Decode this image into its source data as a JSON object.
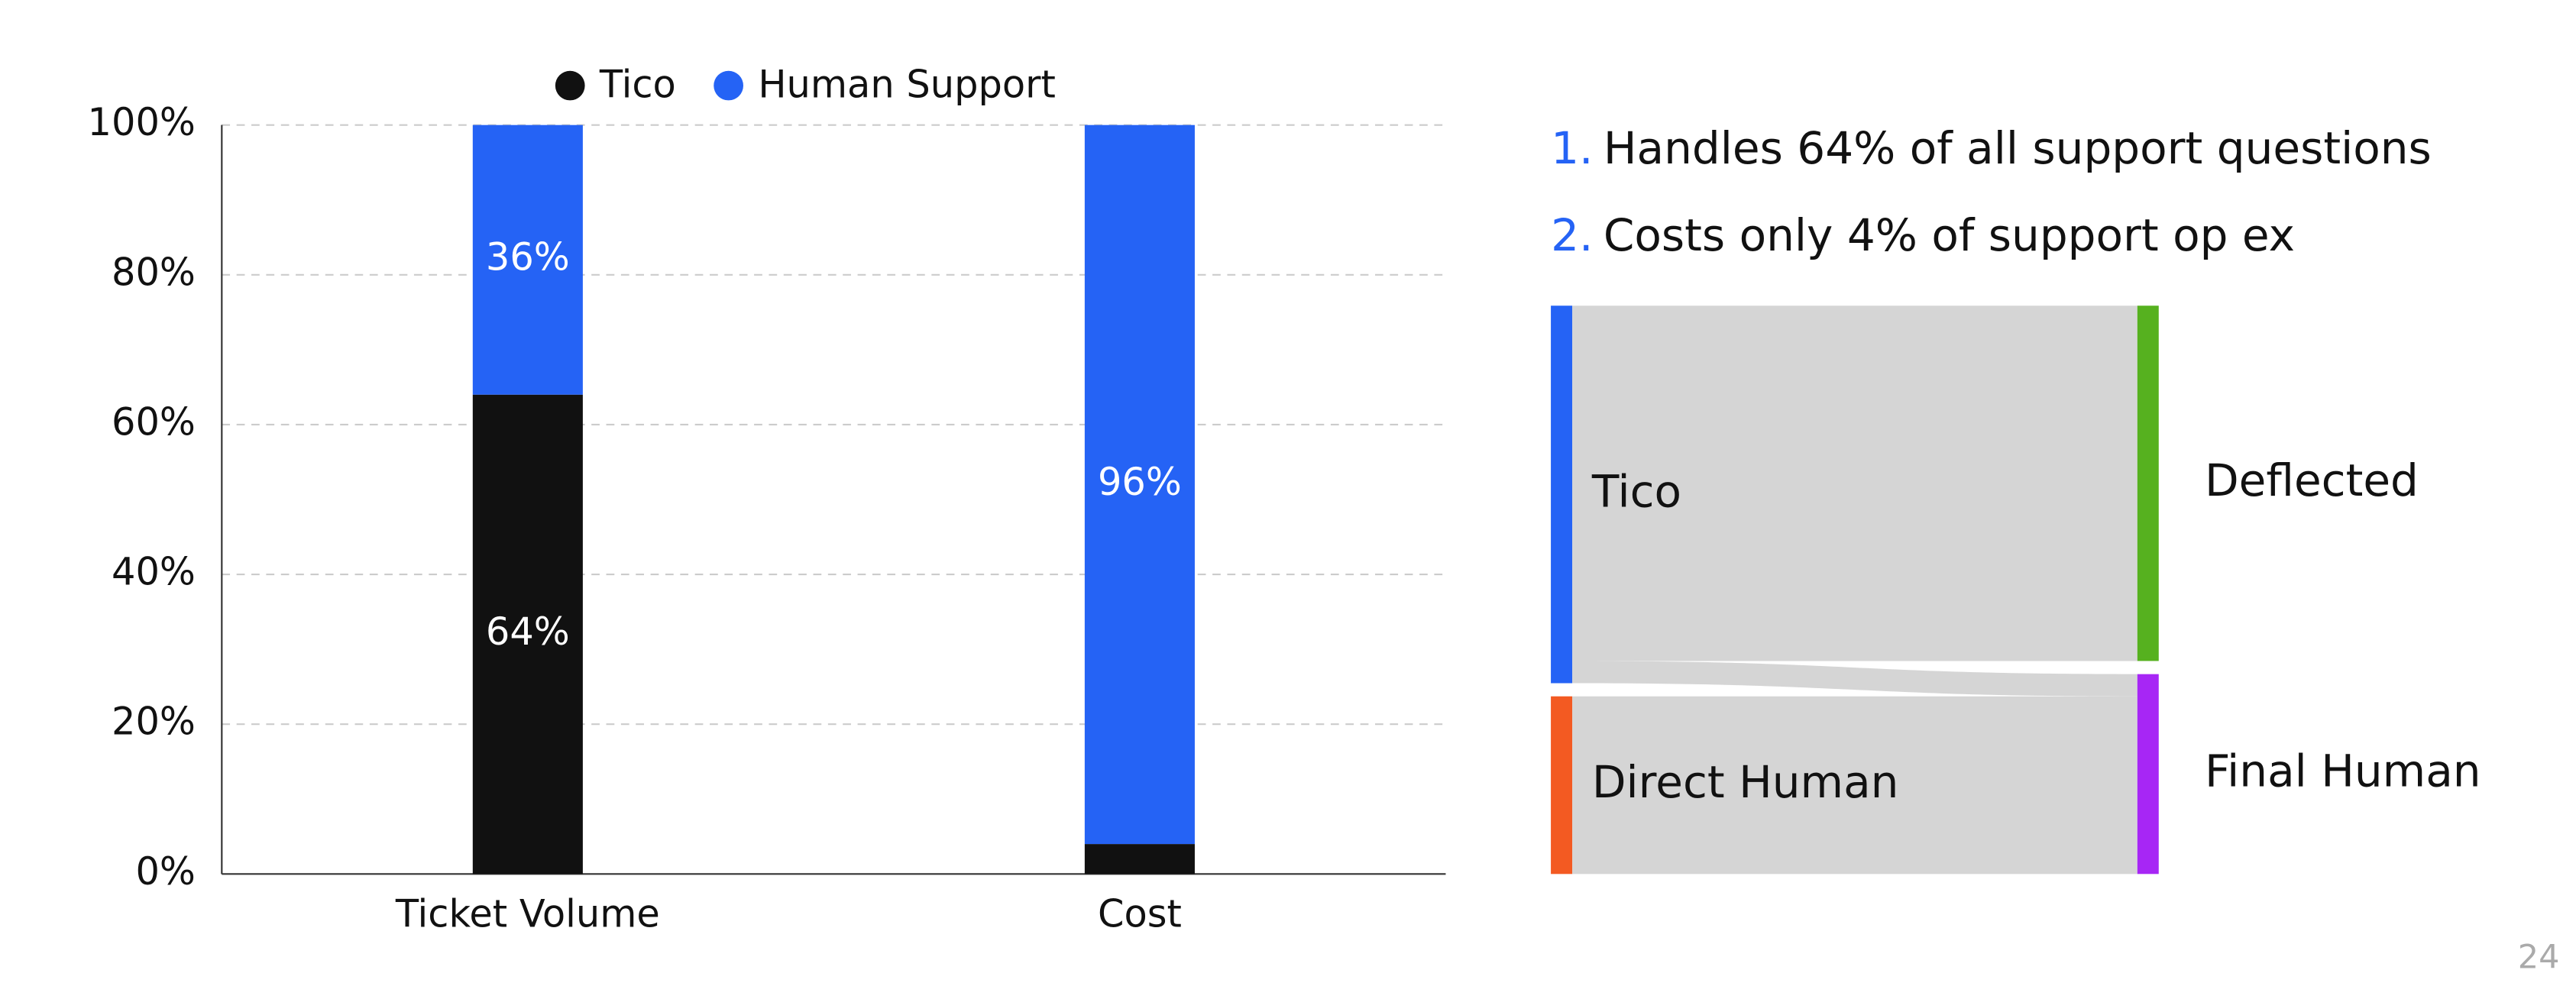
{
  "chart_data": [
    {
      "type": "bar",
      "stacked": true,
      "categories": [
        "Ticket Volume",
        "Cost"
      ],
      "series": [
        {
          "name": "Tico",
          "color": "#111111",
          "values": [
            64,
            4
          ],
          "value_labels": [
            "64%",
            null
          ]
        },
        {
          "name": "Human Support",
          "color": "#2563f5",
          "values": [
            36,
            96
          ],
          "value_labels": [
            "36%",
            "96%"
          ]
        }
      ],
      "ylim": [
        0,
        100
      ],
      "yticks": [
        {
          "value": 0,
          "label": "0%"
        },
        {
          "value": 20,
          "label": "20%"
        },
        {
          "value": 40,
          "label": "40%"
        },
        {
          "value": 60,
          "label": "60%"
        },
        {
          "value": 80,
          "label": "80%"
        },
        {
          "value": 100,
          "label": "100%"
        }
      ],
      "grid": true,
      "legend": "top"
    },
    {
      "type": "sankey",
      "nodes": [
        {
          "name": "Tico",
          "color": "#2563f5",
          "column": 0
        },
        {
          "name": "Direct Human",
          "color": "#f35a22",
          "column": 0
        },
        {
          "name": "Deflected",
          "color": "#56b11f",
          "column": 1
        },
        {
          "name": "Final Human",
          "color": "#a726f5",
          "column": 1
        }
      ],
      "links": [
        {
          "source": "Tico",
          "target": "Deflected",
          "value": 64
        },
        {
          "source": "Tico",
          "target": "Final Human",
          "value": 4
        },
        {
          "source": "Direct Human",
          "target": "Final Human",
          "value": 32
        }
      ],
      "link_color": "#d3d3d3"
    }
  ],
  "list": [
    {
      "marker": "1.",
      "text": "Handles 64% of all support questions"
    },
    {
      "marker": "2.",
      "text": "Costs only 4% of support op ex"
    }
  ],
  "page_number": "24"
}
